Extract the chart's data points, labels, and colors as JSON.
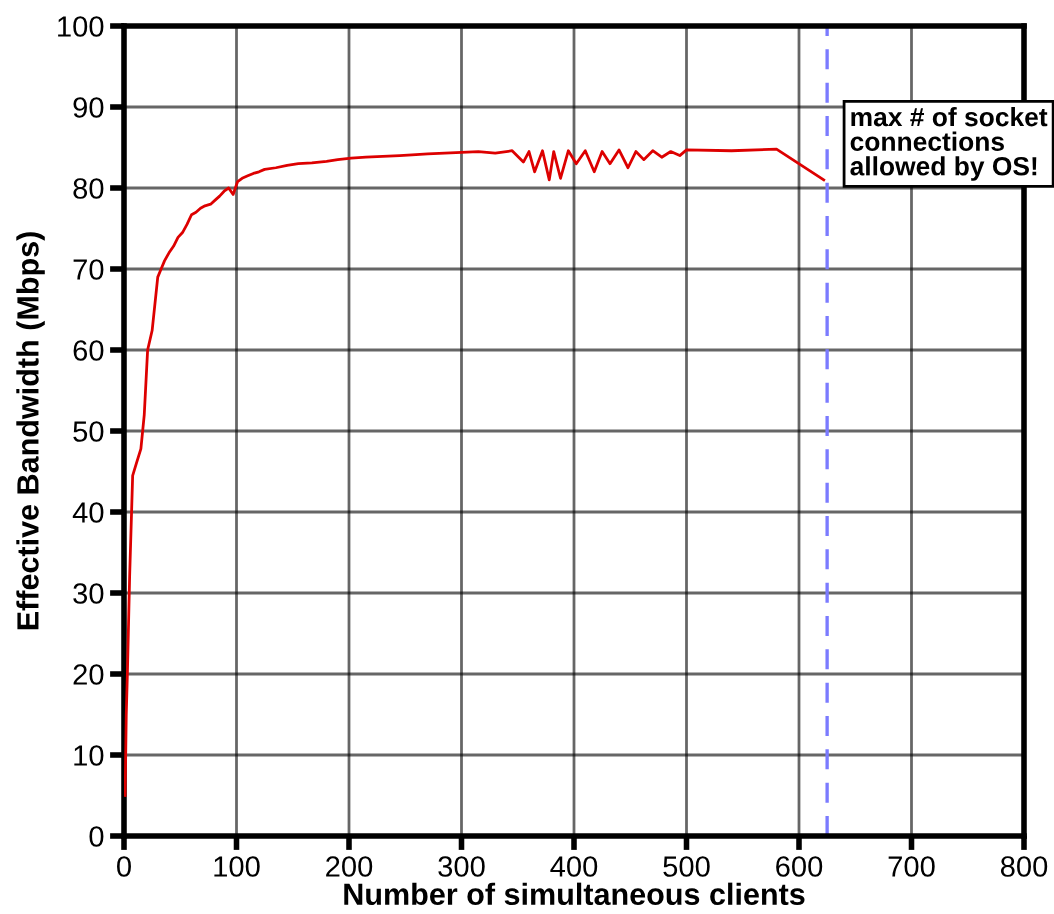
{
  "chart_data": {
    "type": "line",
    "xlabel": "Number of simultaneous clients",
    "ylabel": "Effective Bandwidth (Mbps)",
    "x": [
      1,
      2,
      3,
      5,
      7.7,
      11,
      15,
      18,
      21,
      25,
      30,
      33,
      36,
      40,
      44,
      48,
      52,
      56,
      60,
      64,
      68,
      72,
      77,
      81,
      85,
      89,
      93,
      97,
      101,
      105,
      110,
      115,
      120,
      125,
      135,
      145,
      155,
      167,
      180,
      190,
      202,
      215,
      230,
      245,
      256,
      270,
      285,
      300,
      315,
      330,
      345,
      355,
      360,
      365,
      372,
      378,
      382,
      388,
      395,
      402,
      410,
      418,
      425,
      432,
      440,
      448,
      455,
      462,
      470,
      478,
      486,
      494,
      500,
      540,
      580,
      622
    ],
    "series": [
      {
        "color": "#dd0000",
        "values": [
          5,
          15,
          20,
          32,
          44.5,
          46,
          47.8,
          52,
          60,
          62.4,
          69,
          70,
          71,
          72,
          72.8,
          73.9,
          74.5,
          75.5,
          76.7,
          77,
          77.5,
          77.8,
          78,
          78.5,
          79,
          79.6,
          80,
          79.2,
          80.8,
          81.2,
          81.5,
          81.8,
          82,
          82.3,
          82.5,
          82.8,
          83,
          83.1,
          83.3,
          83.5,
          83.7,
          83.8,
          83.9,
          84,
          84.1,
          84.2,
          84.3,
          84.4,
          84.5,
          84.3,
          84.6,
          83.2,
          84.5,
          82,
          84.6,
          81,
          84.5,
          81.2,
          84.6,
          83,
          84.6,
          82,
          84.5,
          83,
          84.7,
          82.5,
          84.5,
          83.5,
          84.6,
          83.8,
          84.5,
          84,
          84.7,
          84.6,
          84.8,
          81
        ]
      }
    ],
    "xlim": [
      0,
      800
    ],
    "ylim": [
      0,
      100
    ],
    "xticks": [
      0,
      100,
      200,
      300,
      400,
      500,
      600,
      700,
      800
    ],
    "yticks": [
      0,
      10,
      20,
      30,
      40,
      50,
      60,
      70,
      80,
      90,
      100
    ],
    "grid": true,
    "marker": "none",
    "line_style": "solid",
    "ref_lines": [
      {
        "axis": "x",
        "value": 625,
        "label": "max # of socket\nconnections\nallowed by OS!",
        "color": "#7b7bff",
        "line_style": "dashed"
      }
    ]
  }
}
